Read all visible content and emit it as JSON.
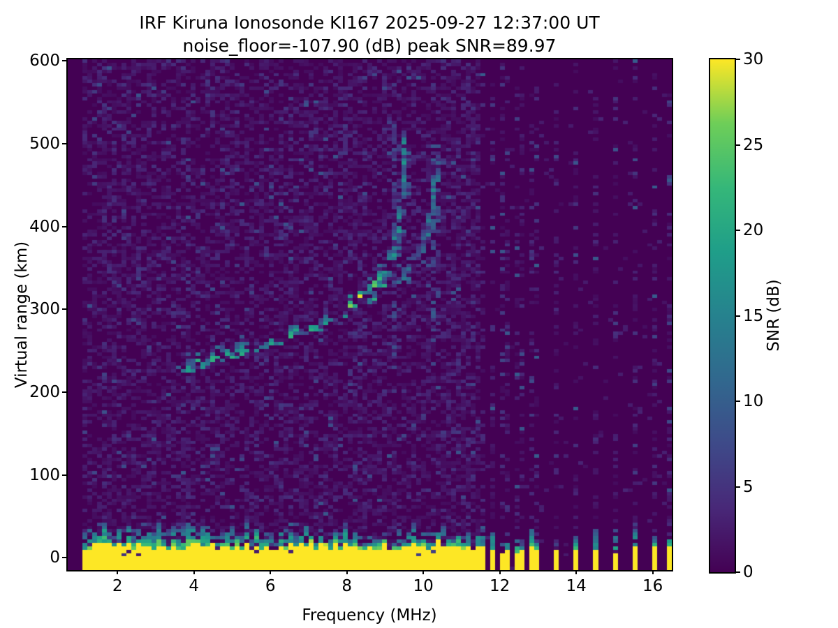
{
  "chart_data": {
    "type": "heatmap",
    "title": "IRF Kiruna Ionosonde KI167 2025-09-27 12:37:00  UT",
    "subtitle": "noise_floor=-107.90 (dB) peak SNR=89.97",
    "station": "IRF Kiruna Ionosonde KI167",
    "timestamp_ut": "2025-09-27 12:37:00 UT",
    "noise_floor_db": -107.9,
    "peak_snr_db": 89.97,
    "xlabel": "Frequency (MHz)",
    "ylabel": "Virtual range (km)",
    "xlim": [
      0.7,
      16.5
    ],
    "ylim": [
      -15,
      602
    ],
    "x_ticks": [
      2,
      4,
      6,
      8,
      10,
      12,
      14,
      16
    ],
    "y_ticks": [
      0,
      100,
      200,
      300,
      400,
      500,
      600
    ],
    "grid_on": false,
    "colorbar": {
      "label": "SNR (dB)",
      "ticks": [
        0,
        5,
        10,
        15,
        20,
        25,
        30
      ],
      "vmin": 0,
      "vmax": 30,
      "colormap": "viridis",
      "position": "right"
    },
    "colormap_stops": [
      [
        0.0,
        "#440154"
      ],
      [
        0.125,
        "#482878"
      ],
      [
        0.25,
        "#3e4a89"
      ],
      [
        0.375,
        "#31688e"
      ],
      [
        0.5,
        "#26828e"
      ],
      [
        0.625,
        "#1f9e89"
      ],
      [
        0.75,
        "#35b779"
      ],
      [
        0.875,
        "#6ece58"
      ],
      [
        1.0,
        "#fde725"
      ]
    ],
    "grid": {
      "cols": 123,
      "rows": 150
    },
    "sounding": {
      "f_start_mhz": 1.05,
      "f_continuous_end_mhz": 11.55
    },
    "background_noise": {
      "base_density": 0.5,
      "snr_max": 6,
      "dense_band": {
        "f_range": [
          10.4,
          11.55
        ],
        "density": 0.6
      },
      "quiet_right_density": 0.025
    },
    "ground_clutter": {
      "f_range": [
        1.05,
        11.55
      ],
      "solid_top_km": [
        8,
        20
      ],
      "ragged_top_km": [
        15,
        40
      ],
      "snr": 30
    },
    "rfi_columns": {
      "frequencies_mhz": [
        11.6,
        11.85,
        12.08,
        12.26,
        12.45,
        12.63,
        12.81,
        13.03,
        13.54,
        14.0,
        14.5,
        15.0,
        15.5,
        16.05,
        16.45
      ],
      "stub_solid_top_km": [
        5,
        14
      ],
      "stub_ragged_top_km": [
        15,
        42
      ],
      "column_noise_density": 0.35
    },
    "echo_trace": {
      "segments": [
        {
          "name": "F-trace-main",
          "snr": [
            8,
            22
          ],
          "points": [
            [
              3.6,
              227
            ],
            [
              4.0,
              233
            ],
            [
              4.5,
              240
            ],
            [
              5.0,
              247
            ],
            [
              5.5,
              253
            ],
            [
              6.0,
              260
            ],
            [
              6.5,
              267
            ],
            [
              7.0,
              275
            ],
            [
              7.5,
              286
            ],
            [
              8.0,
              300
            ],
            [
              8.4,
              315
            ],
            [
              8.8,
              333
            ],
            [
              9.05,
              348
            ]
          ]
        },
        {
          "name": "F-cusp-O-mode",
          "snr": [
            6,
            18
          ],
          "points": [
            [
              8.65,
              308
            ],
            [
              9.0,
              338
            ],
            [
              9.2,
              362
            ],
            [
              9.32,
              388
            ],
            [
              9.42,
              422
            ],
            [
              9.48,
              462
            ],
            [
              9.53,
              508
            ]
          ]
        },
        {
          "name": "F-branch-X-mode",
          "snr": [
            6,
            16
          ],
          "points": [
            [
              9.35,
              330
            ],
            [
              9.6,
              346
            ],
            [
              9.85,
              363
            ],
            [
              10.05,
              383
            ],
            [
              10.2,
              410
            ],
            [
              10.3,
              442
            ],
            [
              10.38,
              476
            ]
          ]
        }
      ],
      "echo_double_offset_km": 11
    },
    "vertical_lines": [
      {
        "f_mhz": 9.28,
        "range_km": [
          225,
          525
        ],
        "density": 0.55,
        "snr": [
          3,
          9
        ]
      },
      {
        "f_mhz": 10.22,
        "range_km": [
          250,
          505
        ],
        "density": 0.38,
        "snr": [
          4,
          11
        ]
      },
      {
        "f_mhz": 3.78,
        "range_km": [
          -10,
          600
        ],
        "density": 0.12,
        "snr": [
          2,
          5
        ]
      },
      {
        "f_mhz": 6.32,
        "range_km": [
          -10,
          600
        ],
        "density": 0.1,
        "snr": [
          2,
          5
        ]
      },
      {
        "f_mhz": 8.52,
        "range_km": [
          -10,
          600
        ],
        "density": 0.08,
        "snr": [
          2,
          5
        ]
      }
    ]
  }
}
